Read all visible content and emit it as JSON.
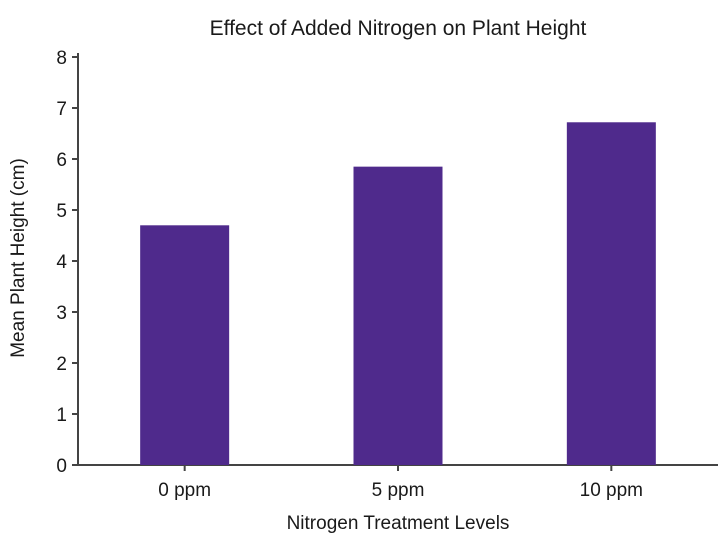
{
  "chart_data": {
    "type": "bar",
    "title": "Effect of Added Nitrogen on Plant Height",
    "xlabel": "Nitrogen Treatment Levels",
    "ylabel": "Mean Plant Height (cm)",
    "categories": [
      "0 ppm",
      "5 ppm",
      "10 ppm"
    ],
    "values": [
      4.7,
      5.85,
      6.72
    ],
    "ylim": [
      0,
      8
    ],
    "yticks": [
      0,
      1,
      2,
      3,
      4,
      5,
      6,
      7,
      8
    ],
    "grid": false,
    "legend": "none",
    "bar_color": "#4f2a8c",
    "axis_color": "#444444"
  }
}
